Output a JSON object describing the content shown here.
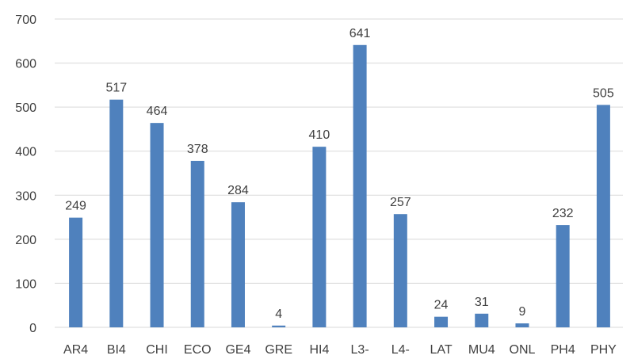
{
  "chart_data": {
    "type": "bar",
    "title": "",
    "xlabel": "",
    "ylabel": "",
    "categories": [
      "AR4",
      "BI4",
      "CHI",
      "ECO",
      "GE4",
      "GRE",
      "HI4",
      "L3-",
      "L4-",
      "LAT",
      "MU4",
      "ONL",
      "PH4",
      "PHY"
    ],
    "values": [
      249,
      517,
      464,
      378,
      284,
      4,
      410,
      641,
      257,
      24,
      31,
      9,
      232,
      505
    ],
    "ylim": [
      0,
      700
    ],
    "yticks": [
      0,
      100,
      200,
      300,
      400,
      500,
      600,
      700
    ],
    "grid": true,
    "legend": "none",
    "data_labels": true,
    "bar_color": "#4f81bd",
    "grid_color": "#d9d9d9",
    "text_color": "#404040"
  }
}
